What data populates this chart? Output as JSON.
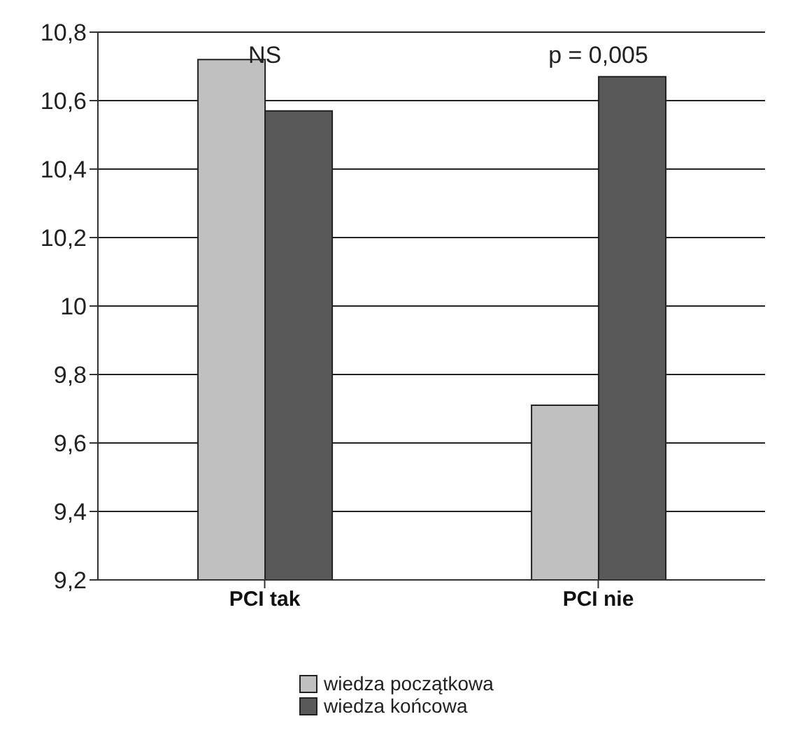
{
  "chart_data": {
    "type": "bar",
    "categories": [
      "PCI tak",
      "PCI nie"
    ],
    "series": [
      {
        "name": "wiedza początkowa",
        "color": "#c0c0c0",
        "values": [
          10.72,
          9.71
        ]
      },
      {
        "name": "wiedza końcowa",
        "color": "#595959",
        "values": [
          10.57,
          10.67
        ]
      }
    ],
    "ylim": [
      9.2,
      10.8
    ],
    "yticks": [
      {
        "value": 9.2,
        "label": "9,2"
      },
      {
        "value": 9.4,
        "label": "9,4"
      },
      {
        "value": 9.6,
        "label": "9,6"
      },
      {
        "value": 9.8,
        "label": "9,8"
      },
      10,
      {
        "value": 10.2,
        "label": "10,2"
      },
      {
        "value": 10.4,
        "label": "10,4"
      },
      {
        "value": 10.6,
        "label": "10,6"
      },
      {
        "value": 10.8,
        "label": "10,8"
      }
    ],
    "grid": "y",
    "legend": "bottom",
    "annotations": [
      "NS",
      "p = 0,005"
    ]
  }
}
